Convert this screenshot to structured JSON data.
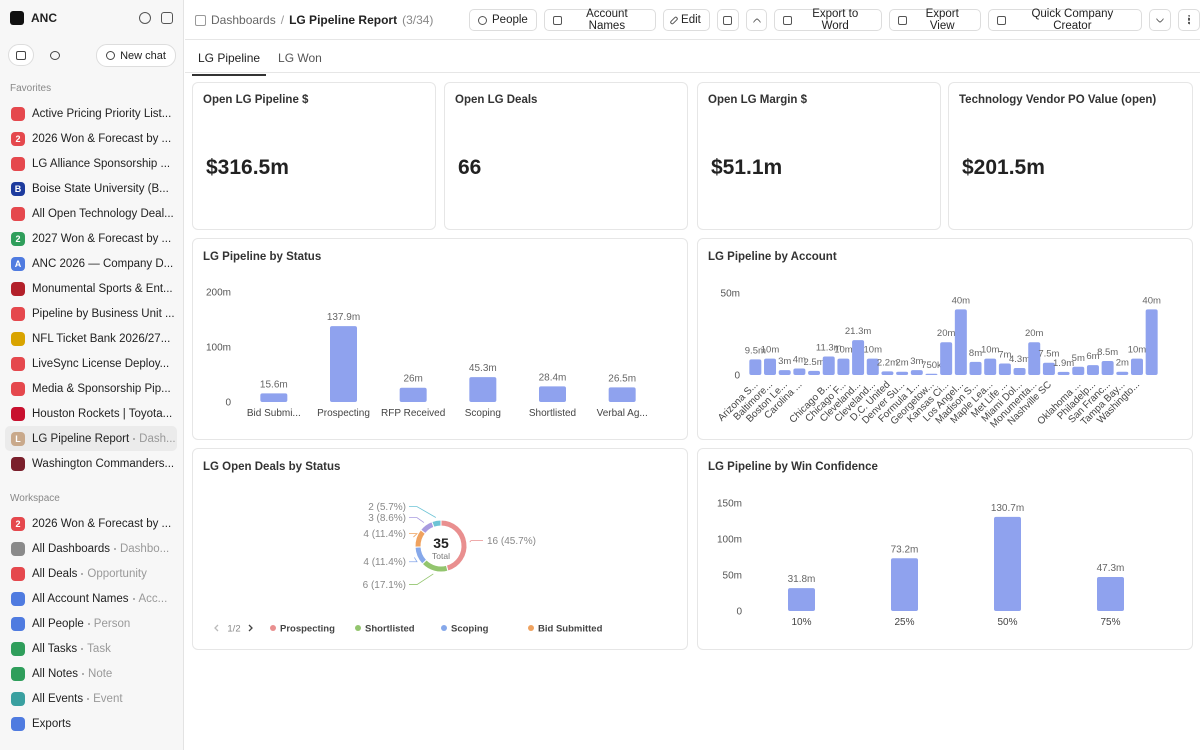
{
  "sidebar": {
    "workspace": "ANC",
    "new_chat": "New chat",
    "favorites_title": "Favorites",
    "favorites": [
      {
        "label": "Active Pricing Priority List..."
      },
      {
        "badge": "2",
        "label": "2026 Won & Forecast by ..."
      },
      {
        "label": "LG Alliance Sponsorship ..."
      },
      {
        "badge": "B",
        "label": "Boise State University (B..."
      },
      {
        "label": "All Open Technology Deal..."
      },
      {
        "badge": "2",
        "label": "2027 Won & Forecast by ..."
      },
      {
        "badge": "A",
        "label": "ANC 2026 — Company D..."
      },
      {
        "label": "Monumental Sports & Ent..."
      },
      {
        "label": "Pipeline by Business Unit ..."
      },
      {
        "label": "NFL Ticket Bank 2026/27..."
      },
      {
        "label": "LiveSync License Deploy..."
      },
      {
        "label": "Media & Sponsorship Pip..."
      },
      {
        "label": "Houston Rockets | Toyota..."
      },
      {
        "badge": "L",
        "label": "LG Pipeline Report",
        "sub": "Dash..."
      },
      {
        "label": "Washington Commanders..."
      }
    ],
    "workspace_title": "Workspace",
    "workspace_items": [
      {
        "badge": "2",
        "label": "2026 Won & Forecast by ..."
      },
      {
        "label": "All Dashboards",
        "sub": "Dashbo..."
      },
      {
        "label": "All Deals",
        "sub": "Opportunity"
      },
      {
        "label": "All Account Names",
        "sub": "Acc..."
      },
      {
        "label": "All People",
        "sub": "Person"
      },
      {
        "label": "All Tasks",
        "sub": "Task"
      },
      {
        "label": "All Notes",
        "sub": "Note"
      },
      {
        "label": "All Events",
        "sub": "Event"
      },
      {
        "label": "Exports"
      }
    ]
  },
  "header": {
    "parent": "Dashboards",
    "separator": "/",
    "current": "LG Pipeline Report",
    "count": "(3/34)",
    "buttons": [
      "People",
      "Account Names",
      "Edit",
      "Export to Word",
      "Export View",
      "Quick Company Creator"
    ]
  },
  "tabs": [
    "LG Pipeline",
    "LG Won"
  ],
  "kpis": [
    {
      "title": "Open LG Pipeline $",
      "value": "$316.5m"
    },
    {
      "title": "Open LG Deals",
      "value": "66"
    },
    {
      "title": "Open LG Margin $",
      "value": "$51.1m"
    },
    {
      "title": "Technology Vendor PO Value (open)",
      "value": "$201.5m"
    }
  ],
  "chart_data": [
    {
      "type": "bar",
      "title": "LG Pipeline by Status",
      "color": "#8fa2ee",
      "categories": [
        "Bid Submi...",
        "Prospecting",
        "RFP Received",
        "Scoping",
        "Shortlisted",
        "Verbal Ag..."
      ],
      "values": [
        15.6,
        137.9,
        26,
        45.3,
        28.4,
        26.5
      ],
      "value_labels": [
        "15.6m",
        "137.9m",
        "26m",
        "45.3m",
        "28.4m",
        "26.5m"
      ],
      "ylim": [
        0,
        200
      ],
      "yticks": [
        {
          "value": 0,
          "label": "0"
        },
        {
          "value": 100,
          "label": "100m"
        },
        {
          "value": 200,
          "label": "200m"
        }
      ]
    },
    {
      "type": "bar",
      "title": "LG Pipeline by Account",
      "color": "#8fa2ee",
      "categories": [
        "Arizona S...",
        "Baltimore...",
        "Boston Le...",
        "Carolina ...",
        null,
        "Chicago B...",
        "Chicago F...",
        "Cleveland...",
        "Cleveland...",
        "D.C. United",
        "Denver Su...",
        "Formula 1...",
        "Georgetow...",
        "Kansas Ci...",
        "Los Angel...",
        "Madison S...",
        "Maple Lea...",
        "Met Life ...",
        "Miami Dol...",
        "Monumenta...",
        "Nashville SC",
        null,
        "Oklahoma ...",
        "Philadelp...",
        "San Franc...",
        "Tampa Bay...",
        "Washingto...",
        null
      ],
      "values": [
        9.5,
        10,
        3,
        4,
        2.5,
        11.3,
        10,
        21.3,
        10,
        2.2,
        2,
        3,
        0.75,
        20,
        40,
        8,
        10,
        7,
        4.3,
        20,
        7.5,
        1.9,
        5,
        6,
        8.5,
        2,
        10,
        40
      ],
      "value_labels": [
        "9.5m",
        "10m",
        "3m",
        "4m",
        "2.5m",
        "11.3m",
        "10m",
        "21.3m",
        "10m",
        "2.2m",
        "2m",
        "3m",
        "750k",
        "20m",
        "40m",
        "8m",
        "10m",
        "7m",
        "4.3m",
        "20m",
        "7.5m",
        "1.9m",
        "5m",
        "6m",
        "8.5m",
        "2m",
        "10m",
        "40m"
      ],
      "ylim": [
        0,
        50
      ],
      "yticks": [
        {
          "value": 0,
          "label": "0"
        },
        {
          "value": 50,
          "label": "50m"
        }
      ]
    },
    {
      "type": "pie",
      "donut": true,
      "title": "LG Open Deals by Status",
      "categories": [
        "Prospecting",
        "Shortlisted",
        "Scoping",
        "Bid Submitted",
        null,
        null
      ],
      "values": [
        16,
        6,
        4,
        4,
        3,
        2
      ],
      "value_labels": [
        "16 (45.7%)",
        "6 (17.1%)",
        "4 (11.4%)",
        "4 (11.4%)",
        "3 (8.6%)",
        "2 (5.7%)"
      ],
      "colors": [
        "#e98f8f",
        "#93c56e",
        "#86a8ea",
        "#efa25f",
        "#a89be0",
        "#6cc3d5"
      ],
      "center_value": 35,
      "center_label": "Total",
      "legend_page": "1/2"
    },
    {
      "type": "bar",
      "title": "LG Pipeline by Win Confidence",
      "color": "#8fa2ee",
      "categories": [
        "10%",
        "25%",
        "50%",
        "75%"
      ],
      "values": [
        31.8,
        73.2,
        130.7,
        47.3
      ],
      "value_labels": [
        "31.8m",
        "73.2m",
        "130.7m",
        "47.3m"
      ],
      "ylim": [
        0,
        150
      ],
      "yticks": [
        {
          "value": 0,
          "label": "0"
        },
        {
          "value": 50,
          "label": "50m"
        },
        {
          "value": 100,
          "label": "100m"
        },
        {
          "value": 150,
          "label": "150m"
        }
      ]
    }
  ]
}
